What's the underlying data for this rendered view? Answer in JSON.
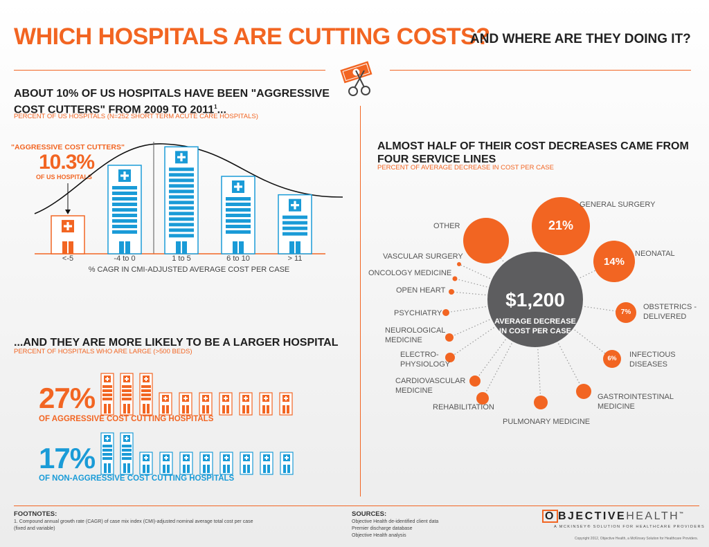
{
  "header": {
    "title": "WHICH HOSPITALS ARE CUTTING COSTS?",
    "subtitle": "AND WHERE ARE THEY DOING IT?"
  },
  "section1": {
    "heading_line1": "ABOUT 10% OF US HOSPITALS HAVE BEEN \"AGGRESSIVE",
    "heading_line2": "COST CUTTERS\" FROM 2009 TO 2011",
    "heading_sup": "1",
    "heading_end": "...",
    "caption": "PERCENT OF US HOSPITALS (N=252 SHORT TERM ACUTE CARE HOSPITALS)",
    "callout_label": "\"AGGRESSIVE COST CUTTERS\"",
    "callout_value": "10.3%",
    "callout_sub": "OF US HOSPITALS",
    "x_axis_label": "% CAGR IN CMI-ADJUSTED AVERAGE COST PER CASE"
  },
  "chart_data": {
    "type": "bar",
    "categories": [
      "<-5",
      "-4 to 0",
      "1 to 5",
      "6 to 10",
      "> 11"
    ],
    "values": [
      10.3,
      24,
      29,
      21,
      16
    ],
    "highlighted_category": "<-5",
    "colors": {
      "highlight": "#f26522",
      "default": "#1a9bd7"
    },
    "grid": false,
    "xlabel": "% CAGR IN CMI-ADJUSTED AVERAGE COST PER CASE"
  },
  "section2": {
    "heading": "...AND THEY ARE MORE LIKELY TO BE A LARGER HOSPITAL",
    "caption": "PERCENT OF HOSPITALS WHO ARE LARGE (>500 BEDS)",
    "aggressive": {
      "value": "27%",
      "label": "OF AGGRESSIVE COST CUTTING HOSPITALS",
      "large_icons": 3,
      "small_icons": 7
    },
    "non_aggressive": {
      "value": "17%",
      "label": "OF NON-AGGRESSIVE COST CUTTING HOSPITALS",
      "large_icons": 2,
      "small_icons": 8
    }
  },
  "section3": {
    "heading_line1": "ALMOST HALF OF THEIR COST DECREASES CAME FROM",
    "heading_line2": "FOUR SERVICE LINES",
    "caption": "PERCENT OF AVERAGE DECREASE IN COST PER CASE",
    "center_value": "$1,200",
    "center_line1": "AVERAGE DECREASE",
    "center_line2": "IN COST PER CASE",
    "services": {
      "general_surgery": {
        "label": "GENERAL SURGERY",
        "pct": "21%"
      },
      "neonatal": {
        "label": "NEONATAL",
        "pct": "14%"
      },
      "obstetrics_1": "OBSTETRICS -",
      "obstetrics_2": "DELIVERED",
      "obstetrics_pct": "7%",
      "infectious_1": "INFECTIOUS",
      "infectious_2": "DISEASES",
      "infectious_pct": "6%",
      "gastro_1": "GASTROINTESTINAL",
      "gastro_2": "MEDICINE",
      "pulmonary": "PULMONARY MEDICINE",
      "rehabilitation": "REHABILITATION",
      "cardio_1": "CARDIOVASCULAR",
      "cardio_2": "MEDICINE",
      "electro_1": "ELECTRO-",
      "electro_2": "PHYSIOLOGY",
      "neuro_1": "NEUROLOGICAL",
      "neuro_2": "MEDICINE",
      "psychiatry": "PSYCHIATRY",
      "open_heart": "OPEN HEART",
      "oncology": "ONCOLOGY MEDICINE",
      "vascular": "VASCULAR SURGERY",
      "other": "OTHER"
    },
    "colors": {
      "bubble": "#f26522",
      "center": "#5d5d5f"
    }
  },
  "footer": {
    "footnotes_heading": "FOOTNOTES:",
    "footnote_1": "1. Compound annual growth rate (CAGR) of case mix index (CMI)-adjusted nominal average total cost per case",
    "footnote_2": "(fixed and variable)",
    "sources_heading": "SOURCES:",
    "source_1": "Objective Health de-identified client data",
    "source_2": "Premier discharge database",
    "source_3": "Objective Health analysis",
    "logo_o": "O",
    "logo_bjective": "BJECTIVE",
    "logo_health": "HEALTH",
    "logo_tm": "™",
    "logo_tagline": "A MCKINSEY® SOLUTION FOR HEALTHCARE PROVIDERS",
    "copyright": "Copyright 2012, Objective Health, a McKinsey Solution for Healthcare Providers."
  }
}
